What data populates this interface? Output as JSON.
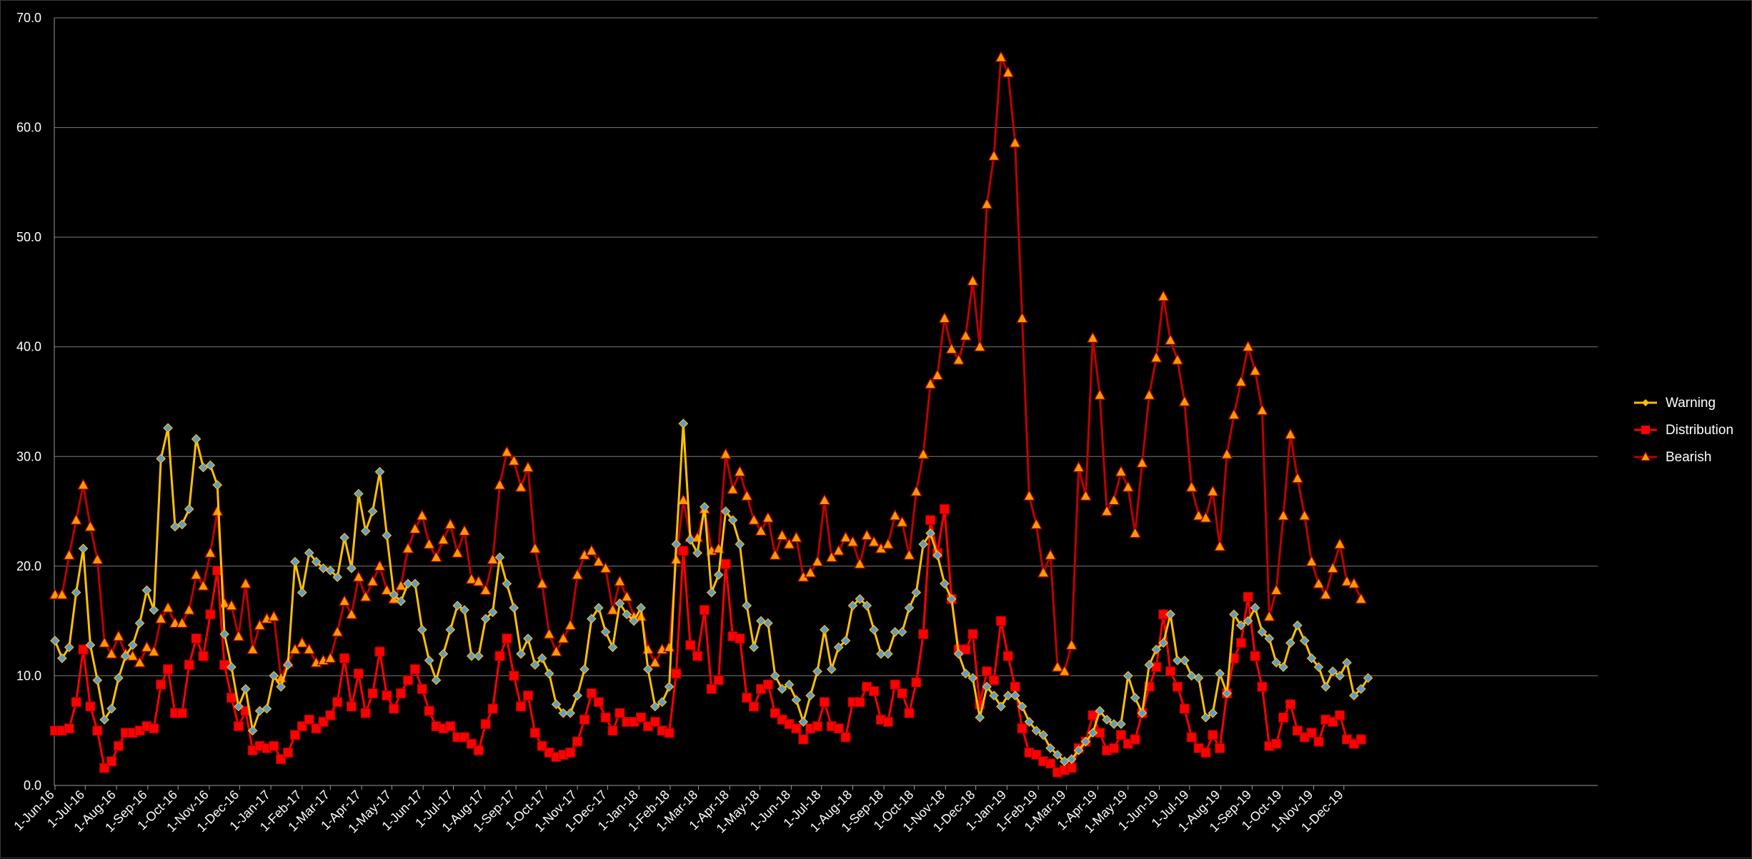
{
  "chart_data": {
    "type": "line",
    "title": "",
    "xlabel": "",
    "ylabel": "",
    "ylim": [
      0,
      70
    ],
    "y_ticks": [
      "0.0",
      "10.0",
      "20.0",
      "30.0",
      "40.0",
      "50.0",
      "60.0",
      "70.0"
    ],
    "x_ticks": [
      "1-Jun-16",
      "1-Jul-16",
      "1-Aug-16",
      "1-Sep-16",
      "1-Oct-16",
      "1-Nov-16",
      "1-Dec-16",
      "1-Jan-17",
      "1-Feb-17",
      "1-Mar-17",
      "1-Apr-17",
      "1-May-17",
      "1-Jun-17",
      "1-Jul-17",
      "1-Aug-17",
      "1-Sep-17",
      "1-Oct-17",
      "1-Nov-17",
      "1-Dec-17",
      "1-Jan-18",
      "1-Feb-18",
      "1-Mar-18",
      "1-Apr-18",
      "1-May-18",
      "1-Jun-18",
      "1-Jul-18",
      "1-Aug-18",
      "1-Sep-18",
      "1-Oct-18",
      "1-Nov-18",
      "1-Dec-18",
      "1-Jan-19",
      "1-Feb-19",
      "1-Mar-19",
      "1-Apr-19",
      "1-May-19",
      "1-Jun-19",
      "1-Jul-19",
      "1-Aug-19",
      "1-Sep-19",
      "1-Oct-19",
      "1-Nov-19",
      "1-Dec-19"
    ],
    "grid": true,
    "legend_position": "right",
    "x_note": "weekly observations from 1-Jun-16 through late Dec-19; x values are week indices from the first point",
    "series": [
      {
        "name": "Warning",
        "color": "#FFC000",
        "marker": "diamond",
        "marker_color": "#5B9BD5",
        "values": [
          13.2,
          11.6,
          12.6,
          17.6,
          21.6,
          12.8,
          9.6,
          6.0,
          7.0,
          9.8,
          11.8,
          12.8,
          14.8,
          17.8,
          16.0,
          29.8,
          32.6,
          23.6,
          23.8,
          25.2,
          31.6,
          29.0,
          29.2,
          27.4,
          13.8,
          10.8,
          7.2,
          8.8,
          5.0,
          6.8,
          7.0,
          10.0,
          9.0,
          11.0,
          20.4,
          17.6,
          21.2,
          20.4,
          19.8,
          19.6,
          19.0,
          22.6,
          19.8,
          26.6,
          23.2,
          25.0,
          28.6,
          22.8,
          17.4,
          16.8,
          18.4,
          18.4,
          14.2,
          11.4,
          9.6,
          12.0,
          14.2,
          16.4,
          16.0,
          11.8,
          11.8,
          15.2,
          15.8,
          20.8,
          18.4,
          16.2,
          12.0,
          13.4,
          11.0,
          11.6,
          10.2,
          7.4,
          6.6,
          6.6,
          8.2,
          10.6,
          15.2,
          16.2,
          14.0,
          12.6,
          16.6,
          15.6,
          15.0,
          16.2,
          10.6,
          7.2,
          7.6,
          9.0,
          22.0,
          33.0,
          22.4,
          21.2,
          25.4,
          17.6,
          19.2,
          25.0,
          24.2,
          22.0,
          16.4,
          12.6,
          15.0,
          14.8,
          10.0,
          8.8,
          9.2,
          7.8,
          5.8,
          8.2,
          10.4,
          14.2,
          10.6,
          12.6,
          13.2,
          16.4,
          17.0,
          16.4,
          14.2,
          12.0,
          12.0,
          14.0,
          14.0,
          16.2,
          17.6,
          22.0,
          23.0,
          21.0,
          18.4,
          17.0,
          12.0,
          10.2,
          9.8,
          6.2,
          9.0,
          8.2,
          7.2,
          8.2,
          8.2,
          7.2,
          5.8,
          5.0,
          4.6,
          3.4,
          2.8,
          2.2,
          2.4,
          3.2,
          4.0,
          4.8,
          6.8,
          6.0,
          5.6,
          5.6,
          10.0,
          8.0,
          6.6,
          11.0,
          12.4,
          13.0,
          15.6,
          11.4,
          11.4,
          10.0,
          9.8,
          6.2,
          6.6,
          10.2,
          8.4,
          15.6,
          14.6,
          15.0,
          16.2,
          14.0,
          13.4,
          11.2,
          10.8,
          13.0,
          14.6,
          13.2,
          11.6,
          10.8,
          9.0,
          10.4,
          10.0,
          11.2,
          8.2,
          8.8,
          9.8
        ]
      },
      {
        "name": "Distribution",
        "color": "#FF0000",
        "marker": "square",
        "marker_color": "#FF0000",
        "values": [
          5.0,
          5.0,
          5.2,
          7.6,
          12.4,
          7.2,
          5.0,
          1.6,
          2.2,
          3.6,
          4.8,
          4.8,
          5.0,
          5.4,
          5.2,
          9.2,
          10.6,
          6.6,
          6.6,
          11.0,
          13.4,
          11.8,
          15.6,
          19.6,
          11.0,
          8.0,
          5.4,
          6.8,
          3.2,
          3.6,
          3.4,
          3.6,
          2.4,
          3.0,
          4.6,
          5.4,
          6.0,
          5.2,
          5.8,
          6.4,
          7.6,
          11.6,
          7.2,
          10.2,
          6.6,
          8.4,
          12.2,
          8.2,
          7.0,
          8.4,
          9.6,
          10.6,
          8.8,
          6.8,
          5.4,
          5.2,
          5.4,
          4.4,
          4.4,
          3.8,
          3.2,
          5.6,
          7.0,
          11.8,
          13.4,
          10.0,
          7.2,
          8.2,
          4.8,
          3.6,
          3.0,
          2.6,
          2.8,
          3.0,
          4.0,
          6.0,
          8.4,
          7.6,
          6.2,
          5.0,
          6.6,
          5.8,
          5.8,
          6.2,
          5.4,
          5.8,
          5.0,
          4.8,
          10.2,
          21.4,
          12.8,
          11.8,
          16.0,
          8.8,
          9.6,
          20.2,
          13.6,
          13.4,
          8.0,
          7.2,
          8.8,
          9.2,
          6.6,
          6.0,
          5.6,
          5.2,
          4.2,
          5.2,
          5.4,
          7.6,
          5.4,
          5.2,
          4.4,
          7.6,
          7.6,
          9.0,
          8.6,
          6.0,
          5.8,
          9.2,
          8.4,
          6.6,
          9.4,
          13.8,
          24.2,
          21.2,
          25.2,
          17.0,
          12.4,
          12.4,
          13.8,
          7.4,
          10.4,
          9.6,
          15.0,
          11.8,
          9.0,
          5.2,
          3.0,
          2.8,
          2.2,
          2.0,
          1.2,
          1.4,
          1.6,
          3.4,
          4.0,
          6.4,
          4.8,
          3.2,
          3.4,
          4.6,
          3.8,
          4.2,
          6.6,
          9.0,
          10.8,
          15.6,
          10.4,
          9.0,
          7.0,
          4.4,
          3.4,
          3.0,
          4.6,
          3.4,
          8.4,
          11.6,
          13.0,
          17.2,
          11.8,
          9.0,
          3.6,
          3.8,
          6.2,
          7.4,
          5.0,
          4.4,
          4.8,
          4.0,
          6.0,
          5.8,
          6.4,
          4.2,
          3.8,
          4.2
        ]
      },
      {
        "name": "Bearish",
        "color": "#C00000",
        "marker": "triangle",
        "marker_color": "#FF9900",
        "values": [
          17.4,
          17.4,
          21.0,
          24.2,
          27.4,
          23.6,
          20.6,
          13.0,
          12.0,
          13.6,
          12.0,
          11.8,
          11.2,
          12.6,
          12.2,
          15.2,
          16.2,
          14.8,
          14.8,
          16.0,
          19.2,
          18.2,
          21.2,
          25.0,
          16.6,
          16.4,
          13.6,
          18.4,
          12.4,
          14.6,
          15.2,
          15.4,
          9.8,
          11.2,
          12.4,
          13.0,
          12.4,
          11.2,
          11.4,
          11.6,
          14.0,
          16.8,
          15.6,
          19.0,
          17.2,
          18.6,
          20.0,
          17.8,
          17.0,
          18.2,
          21.6,
          23.4,
          24.6,
          22.0,
          20.8,
          22.4,
          23.8,
          21.2,
          23.2,
          18.8,
          18.6,
          17.8,
          20.6,
          27.4,
          30.4,
          29.6,
          27.2,
          29.0,
          21.6,
          18.4,
          13.8,
          12.2,
          13.4,
          14.6,
          19.2,
          21.0,
          21.4,
          20.4,
          19.8,
          16.0,
          18.6,
          17.2,
          15.4,
          15.4,
          12.4,
          11.2,
          12.4,
          12.6,
          20.6,
          26.0,
          22.6,
          22.6,
          25.2,
          21.4,
          21.6,
          30.2,
          27.0,
          28.6,
          26.4,
          24.2,
          23.2,
          24.4,
          21.0,
          22.8,
          22.0,
          22.6,
          19.0,
          19.4,
          20.4,
          26.0,
          20.8,
          21.4,
          22.6,
          22.2,
          20.2,
          22.8,
          22.2,
          21.6,
          22.0,
          24.6,
          24.0,
          21.0,
          26.8,
          30.2,
          36.6,
          37.4,
          42.6,
          39.8,
          38.8,
          41.0,
          46.0,
          40.0,
          53.0,
          57.4,
          66.4,
          65.0,
          58.6,
          42.6,
          26.4,
          23.8,
          19.4,
          21.0,
          10.8,
          10.4,
          12.8,
          29.0,
          26.4,
          40.8,
          35.6,
          25.0,
          26.0,
          28.6,
          27.2,
          23.0,
          29.4,
          35.6,
          39.0,
          44.6,
          40.6,
          38.8,
          35.0,
          27.2,
          24.6,
          24.4,
          26.8,
          21.8,
          30.2,
          33.8,
          36.8,
          40.0,
          37.8,
          34.2,
          15.4,
          17.8,
          24.6,
          32.0,
          28.0,
          24.6,
          20.4,
          18.4,
          17.4,
          19.8,
          22.0,
          18.6,
          18.4,
          17.0
        ]
      }
    ]
  }
}
